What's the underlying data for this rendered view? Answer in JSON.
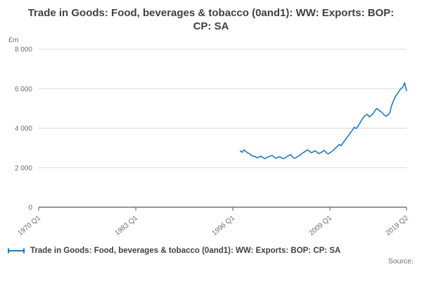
{
  "title": "Trade in Goods: Food, beverages & tobacco (0and1): WW: Exports: BOP: CP: SA",
  "source_label": "Source:",
  "chart_data": {
    "type": "line",
    "title": "Trade in Goods: Food, beverages & tobacco (0and1): WW: Exports: BOP: CP: SA",
    "unit_label": "£m",
    "ylim": [
      0,
      8000
    ],
    "y_ticks": [
      0,
      2000,
      4000,
      6000,
      8000
    ],
    "y_tick_labels": [
      "0",
      "2 000",
      "4 000",
      "6 000",
      "8 000"
    ],
    "x_ticks": [
      "1970 Q1",
      "1983 Q1",
      "1996 Q1",
      "2009 Q1",
      "2019 Q2"
    ],
    "x_range": {
      "start": "1970 Q1",
      "end": "2019 Q2"
    },
    "grid": true,
    "legend_position": "bottom",
    "series": [
      {
        "name": "Trade in Goods: Food, beverages & tobacco (0and1): WW: Exports: BOP: CP: SA",
        "color": "#1f7bb6",
        "x": [
          "1997 Q1",
          "1997 Q2",
          "1997 Q3",
          "1997 Q4",
          "1998 Q1",
          "1998 Q2",
          "1998 Q3",
          "1998 Q4",
          "1999 Q1",
          "1999 Q2",
          "1999 Q3",
          "1999 Q4",
          "2000 Q1",
          "2000 Q2",
          "2000 Q3",
          "2000 Q4",
          "2001 Q1",
          "2001 Q2",
          "2001 Q3",
          "2001 Q4",
          "2002 Q1",
          "2002 Q2",
          "2002 Q3",
          "2002 Q4",
          "2003 Q1",
          "2003 Q2",
          "2003 Q3",
          "2003 Q4",
          "2004 Q1",
          "2004 Q2",
          "2004 Q3",
          "2004 Q4",
          "2005 Q1",
          "2005 Q2",
          "2005 Q3",
          "2005 Q4",
          "2006 Q1",
          "2006 Q2",
          "2006 Q3",
          "2006 Q4",
          "2007 Q1",
          "2007 Q2",
          "2007 Q3",
          "2007 Q4",
          "2008 Q1",
          "2008 Q2",
          "2008 Q3",
          "2008 Q4",
          "2009 Q1",
          "2009 Q2",
          "2009 Q3",
          "2009 Q4",
          "2010 Q1",
          "2010 Q2",
          "2010 Q3",
          "2010 Q4",
          "2011 Q1",
          "2011 Q2",
          "2011 Q3",
          "2011 Q4",
          "2012 Q1",
          "2012 Q2",
          "2012 Q3",
          "2012 Q4",
          "2013 Q1",
          "2013 Q2",
          "2013 Q3",
          "2013 Q4",
          "2014 Q1",
          "2014 Q2",
          "2014 Q3",
          "2014 Q4",
          "2015 Q1",
          "2015 Q2",
          "2015 Q3",
          "2015 Q4",
          "2016 Q1",
          "2016 Q2",
          "2016 Q3",
          "2016 Q4",
          "2017 Q1",
          "2017 Q2",
          "2017 Q3",
          "2017 Q4",
          "2018 Q1",
          "2018 Q2",
          "2018 Q3",
          "2018 Q4",
          "2019 Q1",
          "2019 Q2"
        ],
        "values": [
          2850,
          2780,
          2900,
          2820,
          2750,
          2700,
          2620,
          2580,
          2560,
          2500,
          2540,
          2580,
          2520,
          2460,
          2500,
          2560,
          2580,
          2620,
          2540,
          2480,
          2520,
          2560,
          2500,
          2460,
          2500,
          2560,
          2620,
          2660,
          2540,
          2470,
          2520,
          2580,
          2640,
          2720,
          2780,
          2840,
          2900,
          2840,
          2760,
          2800,
          2860,
          2780,
          2720,
          2760,
          2820,
          2880,
          2760,
          2700,
          2760,
          2820,
          2900,
          3000,
          3080,
          3180,
          3120,
          3260,
          3380,
          3520,
          3640,
          3780,
          3900,
          4050,
          3980,
          4100,
          4250,
          4420,
          4560,
          4650,
          4700,
          4580,
          4640,
          4720,
          4880,
          5000,
          4920,
          4860,
          4780,
          4680,
          4600,
          4680,
          4760,
          5150,
          5380,
          5600,
          5720,
          5880,
          6000,
          6080,
          6300,
          5900
        ]
      }
    ],
    "colors": {
      "line": "#1f7bb6",
      "grid": "#d9d9d9",
      "axis": "#58595b",
      "tick_text": "#6d6e71"
    }
  },
  "legend": {
    "label": "Trade in Goods: Food, beverages & tobacco (0and1): WW: Exports: BOP: CP: SA"
  }
}
